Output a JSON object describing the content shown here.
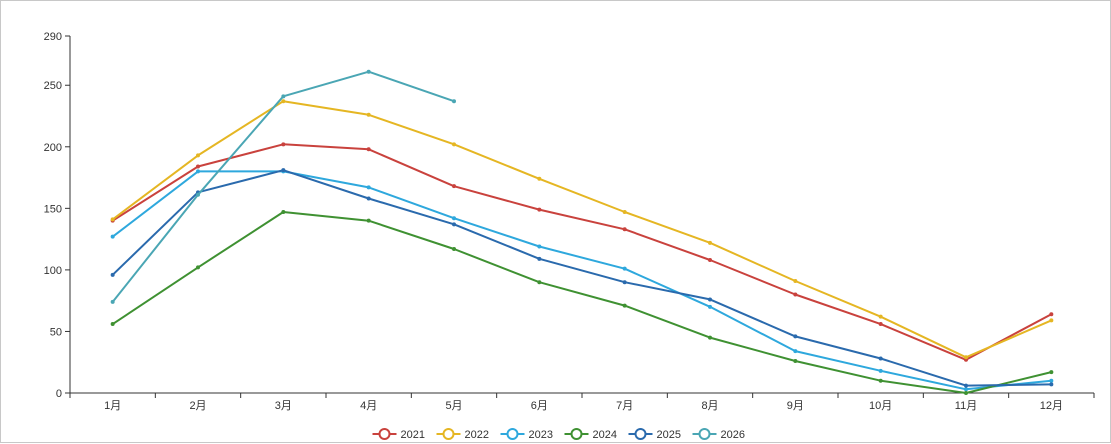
{
  "chart_data": {
    "type": "line",
    "title": "",
    "xlabel": "",
    "ylabel": "",
    "categories": [
      "1月",
      "2月",
      "3月",
      "4月",
      "5月",
      "6月",
      "7月",
      "8月",
      "9月",
      "10月",
      "11月",
      "12月"
    ],
    "ylim": [
      0,
      290
    ],
    "yticks": [
      0,
      50,
      100,
      150,
      200,
      250,
      290
    ],
    "grid": false,
    "legend_position": "bottom-center",
    "series": [
      {
        "name": "2021",
        "color": "#c9423d",
        "values": [
          140,
          184,
          202,
          198,
          168,
          149,
          133,
          108,
          80,
          56,
          27,
          64
        ]
      },
      {
        "name": "2022",
        "color": "#e5b623",
        "values": [
          141,
          193,
          237,
          226,
          202,
          174,
          147,
          122,
          91,
          62,
          29,
          59
        ]
      },
      {
        "name": "2023",
        "color": "#2ea8dd",
        "values": [
          127,
          180,
          180,
          167,
          142,
          119,
          101,
          70,
          34,
          18,
          3,
          10
        ]
      },
      {
        "name": "2024",
        "color": "#3f9132",
        "values": [
          56,
          102,
          147,
          140,
          117,
          90,
          71,
          45,
          26,
          10,
          0,
          17
        ]
      },
      {
        "name": "2025",
        "color": "#2a6aad",
        "values": [
          96,
          163,
          181,
          158,
          137,
          109,
          90,
          76,
          46,
          28,
          6,
          7
        ]
      },
      {
        "name": "2026",
        "color": "#4aa6b4",
        "values": [
          74,
          161,
          241,
          261,
          237,
          null,
          null,
          null,
          null,
          null,
          null,
          null
        ]
      }
    ]
  }
}
